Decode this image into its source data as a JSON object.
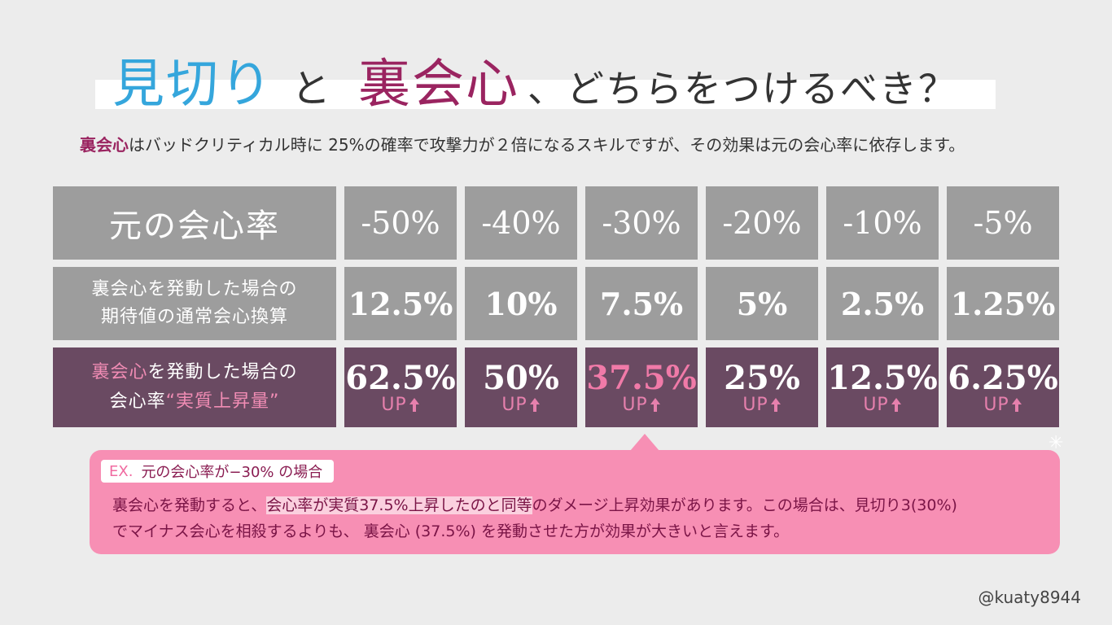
{
  "title": {
    "part1": "見切り",
    "part2": "と",
    "part3": "裏会心",
    "part4": "、どちらをつけるべき？"
  },
  "subtitle": {
    "highlight": "裏会心",
    "rest": "はバッドクリティカル時に 25%の確率で攻撃力が２倍になるスキルですが、その効果は元の会心率に依存します。"
  },
  "table": {
    "header_label": "元の会心率",
    "header_values": [
      "-50%",
      "-40%",
      "-30%",
      "-20%",
      "-10%",
      "-5%"
    ],
    "row1_label_line1": "裏会心を発動した場合の",
    "row1_label_line2": "期待値の通常会心換算",
    "row1_values": [
      "12.5%",
      "10%",
      "7.5%",
      "5%",
      "2.5%",
      "1.25%"
    ],
    "row2_label_pink": "裏会心",
    "row2_label_line1_rest": "を発動した場合の",
    "row2_label_line2_plain": "会心率",
    "row2_label_line2_pink": "“実質上昇量”",
    "row2_values": [
      "62.5%",
      "50%",
      "37.5%",
      "25%",
      "12.5%",
      "6.25%"
    ],
    "up_label": "UP",
    "highlight_index": 2
  },
  "callout": {
    "ex": "EX.",
    "ex_text": "元の会心率が−30% の場合",
    "line1_a": "裏会心を発動すると、",
    "line1_mark": "会心率が実質37.5%上昇したのと同等",
    "line1_b": "のダメージ上昇効果があります。この場合は、見切り3(30%)",
    "line2": "でマイナス会心を相殺するよりも、 裏会心 (37.5%) を発動させた方が効果が大きいと言えます。"
  },
  "credit": "@kuaty8944",
  "colors": {
    "blue": "#35a6dc",
    "magenta": "#9a2460",
    "gray_cell": "#9d9d9d",
    "plum_cell": "#6a4a62",
    "pink": "#f78fb4"
  }
}
